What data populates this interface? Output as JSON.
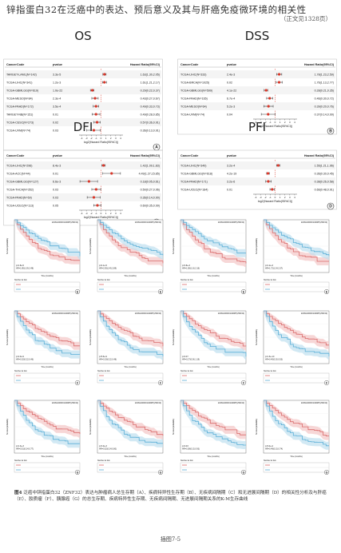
{
  "page": {
    "title": "锌指蛋白32在泛癌中的表达、预后意义及其与肝癌免疫微环境的相关性",
    "subtitle": "（正文见1328页）",
    "page_number": "插图7-5"
  },
  "forest_header": {
    "cancer": "CancerCode",
    "pvalue": "pvalue",
    "hr": "Hazard Ratio(95%CI)"
  },
  "colors": {
    "marker": "#d9382b",
    "line": "#333333",
    "km_high": "#d96a6a",
    "km_low": "#5aaed6",
    "km_high_ci": "#f3c6c6",
    "km_low_ci": "#bfe0f0"
  },
  "panels": [
    {
      "id": "OS",
      "letter": "A",
      "xlabel": "log2(Hazard Ratio(95%CI))",
      "rows": [
        {
          "name": "TARGET-LAML(N=142)",
          "p": "3.3e-5",
          "hr": "1.63(1.30,2.05)",
          "est": 0.7,
          "lo": 0.38,
          "hi": 1.04
        },
        {
          "name": "TCGA-LIHC(N=341)",
          "p": "1.2e-3",
          "hr": "1.61(1.21,2.17)",
          "est": 0.69,
          "lo": 0.28,
          "hi": 1.12
        },
        {
          "name": "TCGA-GBMLGG(N=619)",
          "p": "1.0e-22",
          "hr": "0.29(0.22,0.37)",
          "est": -1.79,
          "lo": -2.18,
          "hi": -1.43
        },
        {
          "name": "TCGA-MESO(N=84)",
          "p": "2.3e-4",
          "hr": "0.43(0.27,0.67)",
          "est": -1.22,
          "lo": -1.89,
          "hi": -0.58
        },
        {
          "name": "TCGA-PAAD(N=172)",
          "p": "3.5e-4",
          "hr": "0.49(0.33,0.73)",
          "est": -1.03,
          "lo": -1.6,
          "hi": -0.45
        },
        {
          "name": "TARGET-NB(N=151)",
          "p": "0.01",
          "hr": "0.49(0.28,0.85)",
          "est": -1.03,
          "lo": -1.84,
          "hi": -0.23
        },
        {
          "name": "TCGA-CESC(N=273)",
          "p": "0.02",
          "hr": "0.57(0.36,0.91)",
          "est": -0.81,
          "lo": -1.47,
          "hi": -0.14
        },
        {
          "name": "TCGA-UVM(N=74)",
          "p": "0.03",
          "hr": "0.36(0.13,0.91)",
          "est": -1.47,
          "lo": -2.94,
          "hi": -0.14
        }
      ]
    },
    {
      "id": "DSS",
      "letter": "B",
      "xlabel": "log2(Hazard Ratio(95%CI))",
      "rows": [
        {
          "name": "TCGA-LIHC(N=333)",
          "p": "2.4e-3",
          "hr": "1.78(1.23,2.59)",
          "est": 0.83,
          "lo": 0.3,
          "hi": 1.37
        },
        {
          "name": "TCGA-BRCA(N=1025)",
          "p": "0.02",
          "hr": "1.76(1.13,2.77)",
          "est": 0.82,
          "lo": 0.18,
          "hi": 1.47
        },
        {
          "name": "TCGA-GBMLGG(N=599)",
          "p": "4.1e-22",
          "hr": "0.28(0.21,0.35)",
          "est": -1.84,
          "lo": -2.25,
          "hi": -1.51
        },
        {
          "name": "TCGA-PAAD(N=165)",
          "p": "6.7e-4",
          "hr": "0.46(0.30,0.72)",
          "est": -1.12,
          "lo": -1.74,
          "hi": -0.47
        },
        {
          "name": "TCGA-MESO(N=64)",
          "p": "5.2e-3",
          "hr": "0.39(0.20,0.76)",
          "est": -1.36,
          "lo": -2.32,
          "hi": -0.4
        },
        {
          "name": "TCGA-UVM(N=74)",
          "p": "0.04",
          "hr": "0.37(0.14,0.99)",
          "est": -1.43,
          "lo": -2.84,
          "hi": -0.01
        }
      ]
    },
    {
      "id": "DFI",
      "letter": "C",
      "xlabel": "log2(Hazard Ratio(95%CI))",
      "rows": [
        {
          "name": "TCGA-LIHC(N=296)",
          "p": "8.4e-3",
          "hr": "1.42(1.09,1.83)",
          "est": 0.51,
          "lo": 0.12,
          "hi": 0.87
        },
        {
          "name": "TCGA-ACC(N=44)",
          "p": "0.01",
          "hr": "4.49(1.27,15.85)",
          "est": 2.17,
          "lo": 0.34,
          "hi": 3.99
        },
        {
          "name": "TCGA-GBMLGG(N=127)",
          "p": "6.6e-3",
          "hr": "0.18(0.05,0.61)",
          "est": -2.47,
          "lo": -4.32,
          "hi": -0.71
        },
        {
          "name": "TCGA-THCA(N=352)",
          "p": "0.03",
          "hr": "0.50(0.27,0.96)",
          "est": -1.0,
          "lo": -1.89,
          "hi": -0.06
        },
        {
          "name": "TCGA-PAAD(N=69)",
          "p": "0.03",
          "hr": "0.36(0.14,0.90)",
          "est": -1.47,
          "lo": -2.84,
          "hi": -0.15
        },
        {
          "name": "TCGA-UCEC(N=113)",
          "p": "0.05",
          "hr": "0.60(0.35,0.99)",
          "est": -0.74,
          "lo": -1.51,
          "hi": -0.01
        }
      ]
    },
    {
      "id": "PFI",
      "letter": "D",
      "xlabel": "log2(Hazard Ratio(95%CI))",
      "rows": [
        {
          "name": "TCGA-LIHC(N=340)",
          "p": "3.2e-4",
          "hr": "1.55(1.21,1.96)",
          "est": 0.63,
          "lo": 0.28,
          "hi": 0.97
        },
        {
          "name": "TCGA-GBMLGG(N=618)",
          "p": "4.2e-19",
          "hr": "0.36(0.30,0.45)",
          "est": -1.47,
          "lo": -1.74,
          "hi": -1.15
        },
        {
          "name": "TCGA-PAAD(N=171)",
          "p": "3.2e-6",
          "hr": "0.38(0.26,0.58)",
          "est": -1.4,
          "lo": -1.94,
          "hi": -0.79
        },
        {
          "name": "TCGA-UCEC(N=184)",
          "p": "0.01",
          "hr": "0.66(0.48,0.91)",
          "est": -0.6,
          "lo": -1.06,
          "hi": -0.14
        }
      ]
    }
  ],
  "km": [
    {
      "letter": "E",
      "ensg": "ENSG00000140987(ZNF32)",
      "stats": "p=1.8e-5\nHR=1.85(1.39,2.48)"
    },
    {
      "letter": "E",
      "ensg": "ENSG00000140987(ZNF32)",
      "stats": "p=4.1e-5\nHR=2.05(1.45,2.89)"
    },
    {
      "letter": "E",
      "ensg": "ENSG00000140987(ZNF32)",
      "stats": "p=3.8e-3\nHR=1.58(1.16,2.16)"
    },
    {
      "letter": "E",
      "ensg": "ENSG00000140987(ZNF32)",
      "stats": "p=1.2e-3\nHR=1.72(1.24,2.37)"
    },
    {
      "letter": "F",
      "ensg": "ENSG00000140987(ZNF32)",
      "stats": "p=2.0e-9\nHR=0.32(0.22,0.46)"
    },
    {
      "letter": "F",
      "ensg": "ENSG00000140987(ZNF32)",
      "stats": "p=5.6e-9\nHR=0.33(0.22,0.48)"
    },
    {
      "letter": "F",
      "ensg": "ENSG00000140987(ZNF32)",
      "stats": "p=0.07\nHR=0.27(0.06,1.19)"
    },
    {
      "letter": "F",
      "ensg": "ENSG00000140987(ZNF32)",
      "stats": "p=1.6e-10\nHR=0.40(0.30,0.53)"
    },
    {
      "letter": "G",
      "ensg": "ENSG00000140987(ZNF32)",
      "stats": "p=1.3e-3\nHR=0.51(0.34,0.77)"
    },
    {
      "letter": "G",
      "ensg": "ENSG00000140987(ZNF32)",
      "stats": "p=3.0e-3\nHR=0.52(0.34,0.80)"
    },
    {
      "letter": "G",
      "ensg": "ENSG00000140987(ZNF32)",
      "stats": "p=0.03\nHR=0.38(0.15,0.93)"
    },
    {
      "letter": "G",
      "ensg": "ENSG00000140987(ZNF32)",
      "stats": "p=6.4e-4\nHR=0.49(0.33,0.74)"
    }
  ],
  "km_axis": {
    "x": "Time (months)",
    "y": "Survival probability",
    "risk": "Number at risk"
  },
  "caption": {
    "label": "图4",
    "text": "泛癌中锌指蛋白32（ZNF32）表达与肿瘤病人总生存期（A）、疾病特异性生存期（B）、无疾病间隔期（C）和无进展间隔期（D）的相关性分析及与肝癌（E）、胶质瘤（F）、胰腺癌（G）的总生存期、疾病特异性生存期、无疾病间隔期、无进展间隔期关系的K-M生存曲线"
  }
}
